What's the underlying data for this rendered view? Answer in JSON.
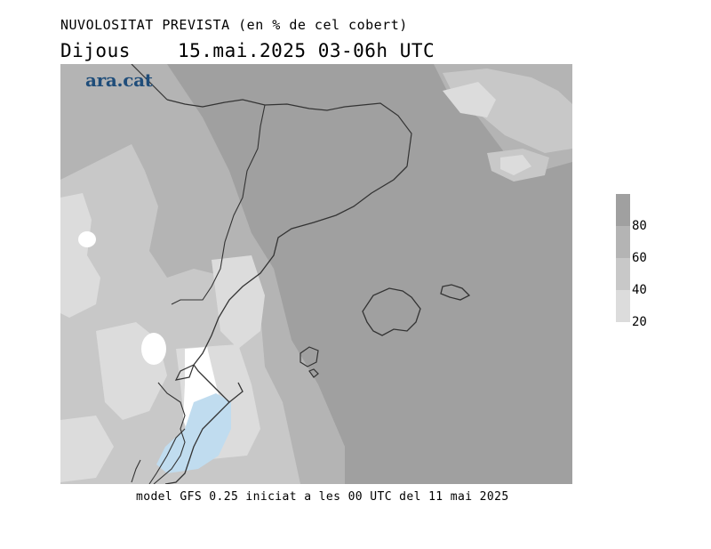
{
  "header": {
    "title": "NUVOLOSITAT PREVISTA (en % de cel cobert)",
    "day": "Dijous",
    "date_time": "15.mai.2025 03-06h UTC"
  },
  "logo": {
    "text": "ara.cat"
  },
  "legend": {
    "labels": [
      "80",
      "60",
      "40",
      "20"
    ],
    "swatch_colors": [
      "#a0a0a0",
      "#b4b4b4",
      "#c8c8c8",
      "#dcdcdc"
    ]
  },
  "footer": {
    "model_note": "model GFS 0.25 iniciat a les 00 UTC del 11 mai 2025"
  },
  "map": {
    "colors": {
      "over_80": "#a0a0a0",
      "60_80": "#b4b4b4",
      "40_60": "#c8c8c8",
      "20_40": "#dcdcdc",
      "under_20": "#ffffff",
      "water_highlight": "#c0dcef",
      "coastline": "#333333"
    }
  }
}
